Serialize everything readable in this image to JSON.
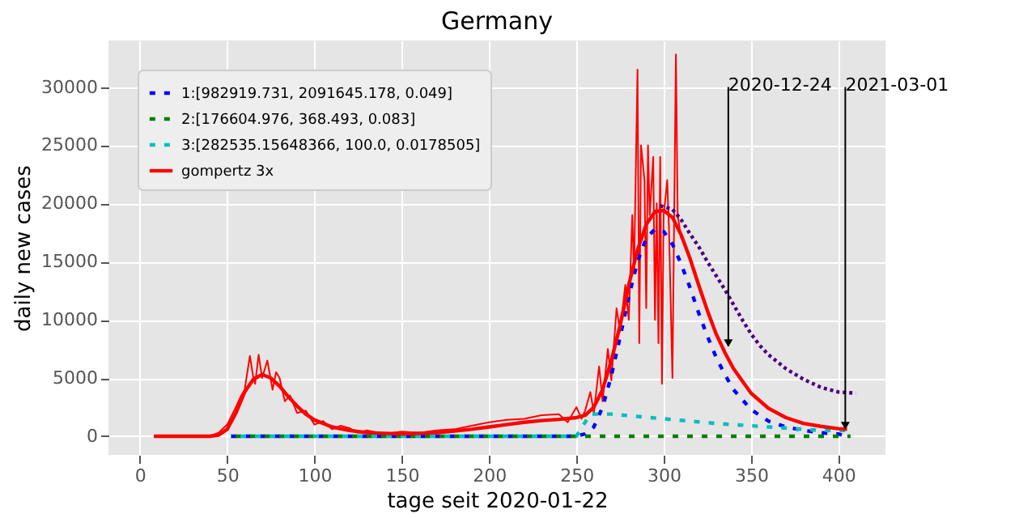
{
  "chart_data": {
    "type": "line",
    "title": "Germany",
    "xlabel": "tage seit 2020-01-22",
    "ylabel": "daily new cases",
    "xlim": [
      -18,
      427
    ],
    "ylim": [
      -1600,
      34000
    ],
    "xticks": [
      0,
      50,
      100,
      150,
      200,
      250,
      300,
      350,
      400
    ],
    "yticks": [
      0,
      5000,
      10000,
      15000,
      20000,
      25000,
      30000
    ],
    "grid": true,
    "legend": "top left",
    "annotations": [
      {
        "text": "2020-12-24",
        "x": 337,
        "y": 8000
      },
      {
        "text": "2021-03-01",
        "x": 404,
        "y": 900
      }
    ],
    "series": [
      {
        "color": "#ff0000",
        "line_style": "solid",
        "x": [
          8,
          20,
          30,
          40,
          45,
          50,
          55,
          58,
          60,
          63,
          65,
          66,
          68,
          70,
          73,
          76,
          78,
          80,
          83,
          86,
          90,
          95,
          100,
          105,
          110,
          115,
          120,
          125,
          130,
          140,
          150,
          160,
          170,
          180,
          190,
          200,
          210,
          220,
          230,
          240,
          245,
          250,
          253,
          255,
          258,
          260,
          263,
          265,
          268,
          270,
          273,
          275,
          278,
          280,
          282,
          283,
          285,
          286,
          287,
          289,
          290,
          291,
          292,
          294,
          295,
          296,
          297,
          298,
          299,
          300,
          302,
          303,
          305,
          307,
          308,
          310
        ],
        "values": [
          0,
          0,
          0,
          0,
          300,
          1000,
          2500,
          3500,
          4000,
          6900,
          5000,
          4500,
          7000,
          5000,
          6500,
          4000,
          5500,
          5000,
          3000,
          3500,
          2000,
          2200,
          1000,
          1300,
          600,
          900,
          700,
          300,
          500,
          200,
          400,
          300,
          500,
          600,
          900,
          1200,
          1400,
          1500,
          1800,
          1900,
          1200,
          2500,
          1500,
          2200,
          3800,
          2000,
          6000,
          3000,
          7500,
          4800,
          11000,
          9000,
          13000,
          10000,
          19000,
          14000,
          31500,
          8000,
          25000,
          22000,
          11000,
          25000,
          19000,
          24000,
          10000,
          20000,
          8000,
          24000,
          4500,
          19000,
          22000,
          18000,
          5000,
          32800,
          19000,
          17000
        ]
      },
      {
        "name": "1:[982919.731, 2091645.178, 0.049]",
        "color": "#0000ff",
        "line_style": "dashed",
        "x": [
          52,
          250,
          255,
          260,
          265,
          270,
          275,
          280,
          285,
          290,
          295,
          300,
          305,
          310,
          315,
          320,
          325,
          330,
          335,
          340,
          350,
          360,
          370,
          380,
          390,
          400,
          405
        ],
        "values": [
          0,
          0,
          200,
          800,
          2500,
          5200,
          8500,
          12000,
          15000,
          17000,
          17800,
          17600,
          16500,
          14800,
          12800,
          10600,
          8600,
          6800,
          5300,
          4000,
          2300,
          1300,
          800,
          500,
          300,
          200,
          0
        ]
      },
      {
        "name": "2:[176604.976, 368.493, 0.083]",
        "color": "#008000",
        "line_style": "dashed",
        "x": [
          52,
          407
        ],
        "values": [
          0,
          0
        ]
      },
      {
        "name": "3:[282535.15648366, 100.0, 0.0178505]",
        "color": "#00bfbf",
        "line_style": "dashed",
        "x": [
          52,
          250,
          255,
          258,
          270,
          300,
          330,
          360,
          390,
          405
        ],
        "values": [
          0,
          0,
          1200,
          1900,
          1900,
          1500,
          1100,
          800,
          500,
          500
        ]
      },
      {
        "name": "gompertz 3x",
        "color": "#ff0000",
        "line_style": "solid",
        "x": [
          8,
          40,
          45,
          50,
          55,
          60,
          65,
          70,
          75,
          80,
          85,
          90,
          95,
          100,
          110,
          120,
          130,
          140,
          150,
          160,
          170,
          180,
          190,
          200,
          210,
          220,
          230,
          240,
          250,
          255,
          260,
          265,
          270,
          275,
          280,
          285,
          290,
          295,
          300,
          305,
          310,
          315,
          320,
          325,
          330,
          335,
          340,
          350,
          360,
          370,
          380,
          390,
          400,
          405
        ],
        "values": [
          0,
          0,
          100,
          600,
          2000,
          3800,
          4900,
          5300,
          5000,
          4300,
          3400,
          2600,
          1900,
          1400,
          800,
          500,
          300,
          250,
          200,
          250,
          300,
          450,
          600,
          800,
          1000,
          1200,
          1350,
          1450,
          1600,
          1800,
          2500,
          4000,
          6500,
          9500,
          13000,
          16000,
          18200,
          19300,
          19400,
          18800,
          17300,
          15300,
          13000,
          10800,
          8800,
          7200,
          5800,
          3700,
          2400,
          1600,
          1100,
          850,
          650,
          600
        ]
      },
      {
        "color": "#4b0082",
        "line_style": "dotted",
        "x": [
          298,
          305,
          310,
          315,
          320,
          325,
          330,
          335,
          340,
          345,
          350,
          355,
          360,
          370,
          380,
          390,
          400,
          410
        ],
        "values": [
          19800,
          19500,
          18600,
          17400,
          16300,
          15000,
          13800,
          12600,
          11300,
          10000,
          8800,
          7800,
          7000,
          5800,
          4900,
          4200,
          3800,
          3700
        ]
      }
    ]
  }
}
